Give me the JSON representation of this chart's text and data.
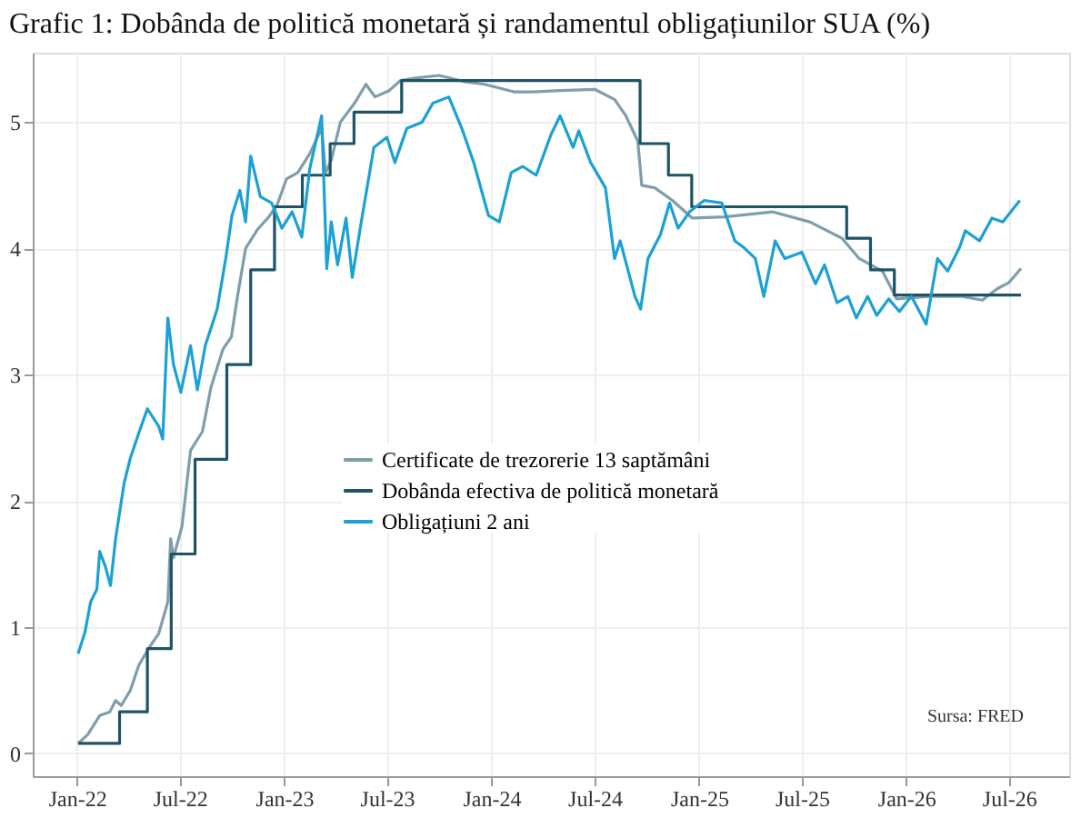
{
  "chart_data": {
    "type": "line",
    "title": "Grafic 1: Dobânda de politică monetară și randamentul obligațiunilor SUA (%)",
    "xlim": [
      "2021-10-15",
      "2026-10-15"
    ],
    "xticks": [
      {
        "value": "2022-01-01",
        "label": "Jan-22"
      },
      {
        "value": "2022-07-01",
        "label": "Jul-22"
      },
      {
        "value": "2023-01-01",
        "label": "Jan-23"
      },
      {
        "value": "2023-07-01",
        "label": "Jul-23"
      },
      {
        "value": "2024-01-01",
        "label": "Jan-24"
      },
      {
        "value": "2024-07-01",
        "label": "Jul-24"
      },
      {
        "value": "2025-01-01",
        "label": "Jan-25"
      },
      {
        "value": "2025-07-01",
        "label": "Jul-25"
      },
      {
        "value": "2026-01-01",
        "label": "Jan-26"
      },
      {
        "value": "2026-07-01",
        "label": "Jul-26"
      }
    ],
    "ylim": [
      -0.18,
      5.55
    ],
    "yticks": [
      0,
      1,
      2,
      3,
      4,
      5
    ],
    "grid": true,
    "legend": "center",
    "marker": "none",
    "line_style": "solid",
    "annotations": [
      "Sursa: FRED"
    ],
    "series": [
      {
        "name": "Certificate de trezorerie 13 saptămâni",
        "color": "#7f9eab",
        "x": [
          "2022-01-03",
          "2022-01-20",
          "2022-02-10",
          "2022-02-28",
          "2022-03-10",
          "2022-03-20",
          "2022-04-05",
          "2022-04-20",
          "2022-05-10",
          "2022-05-25",
          "2022-06-10",
          "2022-06-15",
          "2022-06-20",
          "2022-07-05",
          "2022-07-20",
          "2022-08-10",
          "2022-08-25",
          "2022-09-15",
          "2022-09-30",
          "2022-10-10",
          "2022-10-25",
          "2022-11-15",
          "2022-12-05",
          "2022-12-20",
          "2023-01-05",
          "2023-01-25",
          "2023-02-15",
          "2023-03-08",
          "2023-03-15",
          "2023-03-25",
          "2023-04-10",
          "2023-05-05",
          "2023-05-25",
          "2023-06-10",
          "2023-07-05",
          "2023-07-25",
          "2023-08-20",
          "2023-10-01",
          "2023-11-15",
          "2023-12-20",
          "2024-02-10",
          "2024-03-15",
          "2024-05-01",
          "2024-07-01",
          "2024-08-05",
          "2024-08-25",
          "2024-09-15",
          "2024-09-22",
          "2024-10-15",
          "2024-11-15",
          "2024-12-20",
          "2025-02-15",
          "2025-05-10",
          "2025-07-15",
          "2025-09-10",
          "2025-10-10",
          "2025-11-20",
          "2025-12-15",
          "2026-02-10",
          "2026-04-10",
          "2026-05-15",
          "2026-06-10",
          "2026-07-01",
          "2026-07-22"
        ],
        "values": [
          0.08,
          0.15,
          0.3,
          0.33,
          0.42,
          0.38,
          0.5,
          0.7,
          0.85,
          0.95,
          1.2,
          1.7,
          1.55,
          1.8,
          2.4,
          2.55,
          2.9,
          3.2,
          3.3,
          3.6,
          4.0,
          4.15,
          4.25,
          4.35,
          4.55,
          4.6,
          4.75,
          4.95,
          4.6,
          4.7,
          5.0,
          5.15,
          5.3,
          5.2,
          5.25,
          5.33,
          5.35,
          5.37,
          5.32,
          5.3,
          5.24,
          5.24,
          5.25,
          5.26,
          5.18,
          5.05,
          4.85,
          4.5,
          4.48,
          4.38,
          4.24,
          4.25,
          4.29,
          4.21,
          4.08,
          3.92,
          3.82,
          3.6,
          3.62,
          3.62,
          3.59,
          3.68,
          3.73,
          3.84
        ]
      },
      {
        "name": "Dobânda efectiva de politică monetară",
        "color": "#1f5366",
        "type": "step",
        "x": [
          "2022-01-03",
          "2022-03-17",
          "2022-05-05",
          "2022-06-16",
          "2022-07-28",
          "2022-09-22",
          "2022-11-03",
          "2022-12-15",
          "2023-02-02",
          "2023-03-23",
          "2023-05-04",
          "2023-07-27",
          "2024-09-19",
          "2024-11-08",
          "2024-12-19",
          "2025-09-18",
          "2025-10-30",
          "2025-12-11",
          "2026-07-22"
        ],
        "values": [
          0.08,
          0.33,
          0.83,
          1.58,
          2.33,
          3.08,
          3.83,
          4.33,
          4.58,
          4.83,
          5.08,
          5.33,
          4.83,
          4.58,
          4.33,
          4.08,
          3.83,
          3.63,
          3.63
        ]
      },
      {
        "name": "Obligațiuni 2 ani",
        "color": "#1ba1d3",
        "x": [
          "2022-01-03",
          "2022-01-15",
          "2022-01-25",
          "2022-02-05",
          "2022-02-10",
          "2022-02-20",
          "2022-03-01",
          "2022-03-10",
          "2022-03-25",
          "2022-04-05",
          "2022-04-20",
          "2022-05-05",
          "2022-05-25",
          "2022-06-01",
          "2022-06-10",
          "2022-06-20",
          "2022-07-03",
          "2022-07-20",
          "2022-08-01",
          "2022-08-15",
          "2022-09-05",
          "2022-09-20",
          "2022-10-01",
          "2022-10-15",
          "2022-10-25",
          "2022-11-03",
          "2022-11-20",
          "2022-12-10",
          "2022-12-28",
          "2023-01-15",
          "2023-02-01",
          "2023-02-15",
          "2023-03-08",
          "2023-03-17",
          "2023-03-25",
          "2023-04-05",
          "2023-04-20",
          "2023-05-01",
          "2023-05-15",
          "2023-06-08",
          "2023-07-01",
          "2023-07-15",
          "2023-08-05",
          "2023-09-01",
          "2023-09-20",
          "2023-10-18",
          "2023-11-10",
          "2023-12-01",
          "2023-12-27",
          "2024-01-15",
          "2024-02-05",
          "2024-02-25",
          "2024-03-20",
          "2024-04-15",
          "2024-05-01",
          "2024-05-24",
          "2024-06-03",
          "2024-06-24",
          "2024-07-20",
          "2024-08-05",
          "2024-08-15",
          "2024-09-10",
          "2024-09-20",
          "2024-10-03",
          "2024-10-25",
          "2024-11-10",
          "2024-11-25",
          "2024-12-15",
          "2025-01-10",
          "2025-02-10",
          "2025-03-05",
          "2025-03-20",
          "2025-04-10",
          "2025-04-25",
          "2025-05-15",
          "2025-06-01",
          "2025-07-01",
          "2025-07-25",
          "2025-08-10",
          "2025-09-01",
          "2025-09-20",
          "2025-10-05",
          "2025-10-25",
          "2025-11-10",
          "2025-12-01",
          "2025-12-20",
          "2026-01-10",
          "2026-02-05",
          "2026-02-25",
          "2026-03-15",
          "2026-04-05",
          "2026-04-15",
          "2026-05-10",
          "2026-06-01",
          "2026-06-20",
          "2026-07-20"
        ],
        "values": [
          0.79,
          0.96,
          1.2,
          1.3,
          1.6,
          1.48,
          1.33,
          1.7,
          2.14,
          2.34,
          2.54,
          2.73,
          2.59,
          2.49,
          3.45,
          3.08,
          2.86,
          3.23,
          2.88,
          3.23,
          3.52,
          3.92,
          4.26,
          4.46,
          4.21,
          4.73,
          4.41,
          4.36,
          4.16,
          4.29,
          4.09,
          4.63,
          5.05,
          3.84,
          4.21,
          3.87,
          4.24,
          3.77,
          4.16,
          4.8,
          4.88,
          4.68,
          4.95,
          5.0,
          5.15,
          5.2,
          4.95,
          4.68,
          4.26,
          4.21,
          4.6,
          4.65,
          4.58,
          4.9,
          5.05,
          4.8,
          4.93,
          4.68,
          4.48,
          3.92,
          4.06,
          3.62,
          3.52,
          3.92,
          4.11,
          4.36,
          4.16,
          4.29,
          4.38,
          4.36,
          4.06,
          4.01,
          3.92,
          3.62,
          4.06,
          3.92,
          3.97,
          3.72,
          3.87,
          3.57,
          3.62,
          3.45,
          3.62,
          3.47,
          3.6,
          3.5,
          3.62,
          3.4,
          3.92,
          3.82,
          4.01,
          4.14,
          4.06,
          4.24,
          4.21,
          4.38
        ]
      }
    ]
  }
}
